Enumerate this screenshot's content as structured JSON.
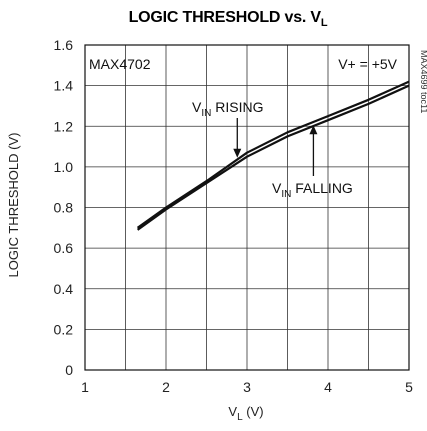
{
  "chart_data": {
    "type": "line",
    "title": {
      "main": "LOGIC THRESHOLD vs. V",
      "sub": "L"
    },
    "xlabel": {
      "main": "V",
      "sub": "L",
      "suffix": " (V)"
    },
    "ylabel": "LOGIC THRESHOLD (V)",
    "xlim": [
      1,
      5
    ],
    "ylim": [
      0,
      1.6
    ],
    "x_ticks": [
      "1",
      "2",
      "3",
      "4",
      "5"
    ],
    "y_ticks": [
      "0",
      "0.2",
      "0.4",
      "0.6",
      "0.8",
      "1.0",
      "1.2",
      "1.4",
      "1.6"
    ],
    "grid": true,
    "device_label": "MAX4702",
    "supply_label": "V+ = +5V",
    "figure_id": "MAX4699 toc11",
    "series": [
      {
        "name": "VIN RISING",
        "x": [
          1.65,
          2.0,
          2.5,
          3.0,
          3.5,
          4.0,
          4.5,
          5.0
        ],
        "y": [
          0.7,
          0.8,
          0.93,
          1.07,
          1.17,
          1.25,
          1.33,
          1.42
        ]
      },
      {
        "name": "VIN FALLING",
        "x": [
          1.65,
          2.0,
          2.5,
          3.0,
          3.5,
          4.0,
          4.5,
          5.0
        ],
        "y": [
          0.69,
          0.79,
          0.92,
          1.05,
          1.15,
          1.23,
          1.31,
          1.4
        ]
      }
    ],
    "annotations": [
      {
        "text": {
          "main": "V",
          "sub": "IN",
          "rest": " RISING"
        },
        "points_to": {
          "x": 2.88,
          "y": 1.04
        }
      },
      {
        "text": {
          "main": "V",
          "sub": "IN",
          "rest": " FALLING"
        },
        "points_to": {
          "x": 3.82,
          "y": 1.21
        }
      }
    ]
  }
}
